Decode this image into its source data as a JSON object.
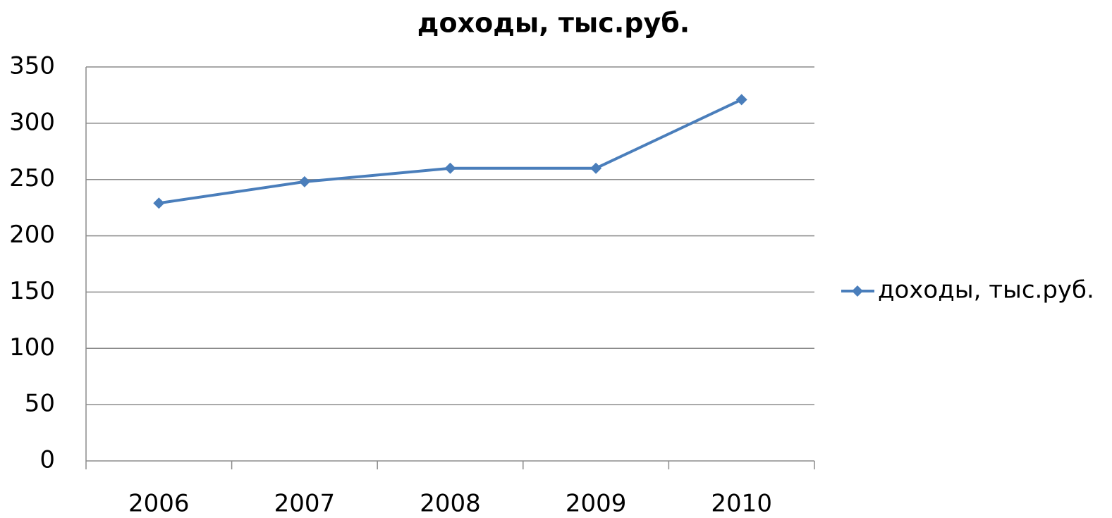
{
  "chart_data": {
    "type": "line",
    "title": "доходы, тыс.руб.",
    "categories": [
      "2006",
      "2007",
      "2008",
      "2009",
      "2010"
    ],
    "series": [
      {
        "name": "доходы, тыс.руб.",
        "color": "#4a7ebb",
        "values": [
          229,
          248,
          260,
          260,
          321
        ]
      }
    ],
    "ylim": [
      0,
      350
    ],
    "yticks": [
      0,
      50,
      100,
      150,
      200,
      250,
      300,
      350
    ],
    "grid": true,
    "legend": "right"
  }
}
